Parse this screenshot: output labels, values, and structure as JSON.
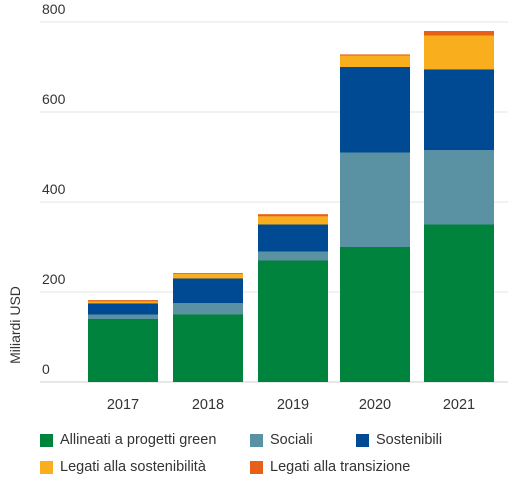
{
  "chart_data": {
    "type": "bar",
    "stacked": true,
    "categories": [
      "2017",
      "2018",
      "2019",
      "2020",
      "2021"
    ],
    "ylabel": "Miliardi USD",
    "ylim": [
      0,
      800
    ],
    "yticks": [
      0,
      200,
      400,
      600,
      800
    ],
    "grid": true,
    "legend_position": "bottom",
    "series": [
      {
        "name": "Allineati a progetti green",
        "color": "#00843d",
        "values": [
          140,
          150,
          270,
          300,
          350
        ]
      },
      {
        "name": "Sociali",
        "color": "#5b92a3",
        "values": [
          10,
          25,
          20,
          210,
          165
        ]
      },
      {
        "name": "Sostenibili",
        "color": "#004a93",
        "values": [
          25,
          55,
          60,
          190,
          180
        ]
      },
      {
        "name": "Legati alla sostenibilità",
        "color": "#f9ae1e",
        "values": [
          4,
          10,
          18,
          25,
          75
        ]
      },
      {
        "name": "Legati alla transizione",
        "color": "#e86018",
        "values": [
          3,
          2,
          5,
          3,
          10
        ]
      }
    ]
  }
}
